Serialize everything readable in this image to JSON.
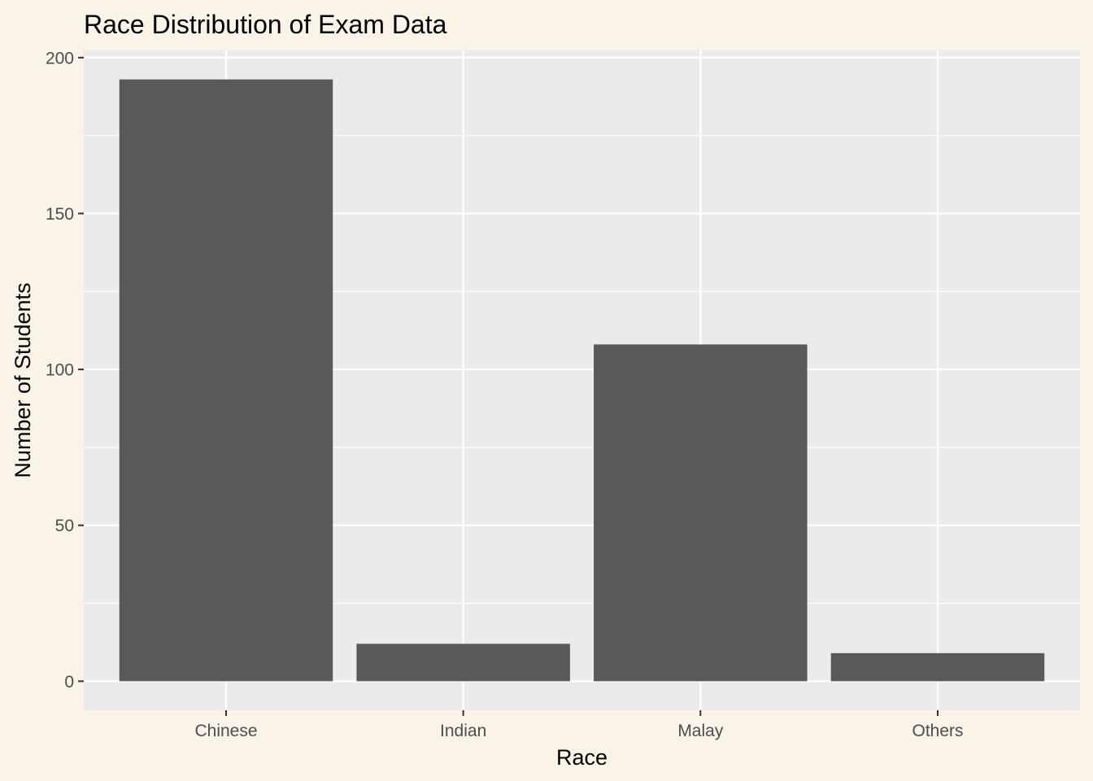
{
  "chart_data": {
    "type": "bar",
    "title": "Race Distribution of Exam Data",
    "xlabel": "Race",
    "ylabel": "Number of Students",
    "categories": [
      "Chinese",
      "Indian",
      "Malay",
      "Others"
    ],
    "values": [
      193,
      12,
      108,
      9
    ],
    "ylim": [
      -9.3,
      202.3
    ],
    "yticks": [
      0,
      50,
      100,
      150,
      200
    ],
    "grid": true,
    "legend": "none",
    "colors": {
      "background": "#faf3e8",
      "panel": "#ebebeb",
      "grid": "#ffffff",
      "bar": "#595959",
      "tick_text": "#4d4d4d",
      "tick_mark": "#333333"
    }
  }
}
